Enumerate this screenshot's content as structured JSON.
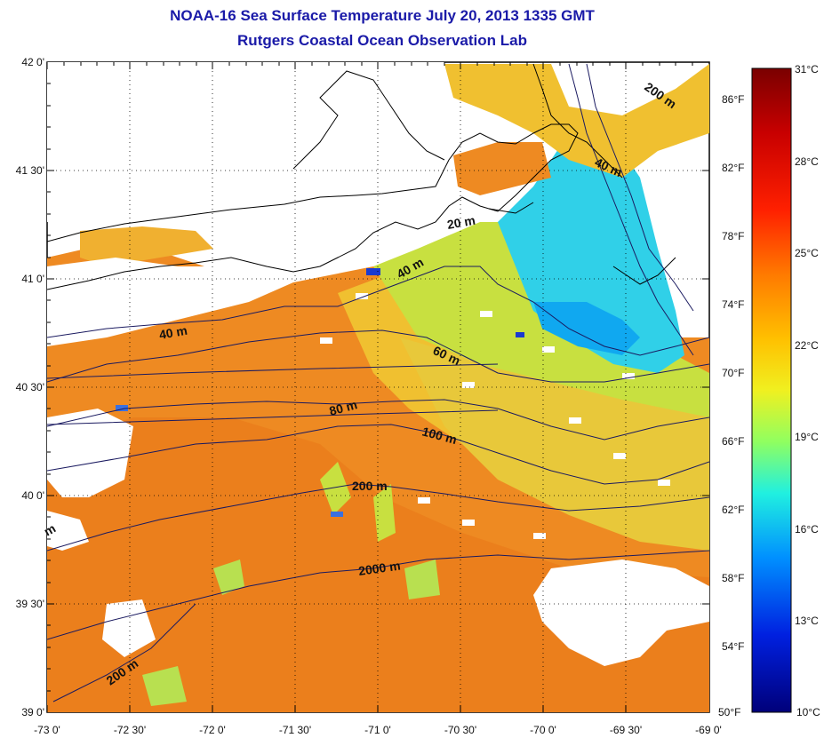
{
  "header": {
    "title": "NOAA-16 Sea Surface Temperature July 20, 2013 1335 GMT",
    "subtitle": "Rutgers Coastal Ocean Observation Lab"
  },
  "map": {
    "lat_ticks": [
      "42 0'",
      "41 30'",
      "41 0'",
      "40 30'",
      "40 0'",
      "39 30'",
      "39 0'"
    ],
    "lon_ticks": [
      "-73 0'",
      "-72 30'",
      "-72 0'",
      "-71 30'",
      "-71 0'",
      "-70 30'",
      "-70 0'",
      "-69 30'",
      "-69 0'"
    ],
    "contour_labels": [
      "200 m",
      "40 m",
      "20 m",
      "40 m",
      "40 m",
      "60 m",
      "80 m",
      "100 m",
      "200 m",
      "2000 m",
      "200 m",
      "m"
    ],
    "colors": {
      "warm": "#ee8a22",
      "mid": "#f0c030",
      "cool": "#c8e040",
      "cold": "#30d0e8",
      "land": "#ffffff",
      "coast": "#000000",
      "contour": "#1a1a60"
    }
  },
  "colorbar": {
    "celsius": [
      "31°C",
      "28°C",
      "25°C",
      "22°C",
      "19°C",
      "16°C",
      "13°C",
      "10°C"
    ],
    "fahrenheit": [
      "86°F",
      "82°F",
      "78°F",
      "74°F",
      "70°F",
      "66°F",
      "62°F",
      "58°F",
      "54°F",
      "50°F"
    ],
    "colors": [
      "#7a0000",
      "#e00000",
      "#ff6000",
      "#ffb000",
      "#f0f020",
      "#80ff70",
      "#20f0f0",
      "#0090ff",
      "#0020e0",
      "#00007a"
    ]
  }
}
